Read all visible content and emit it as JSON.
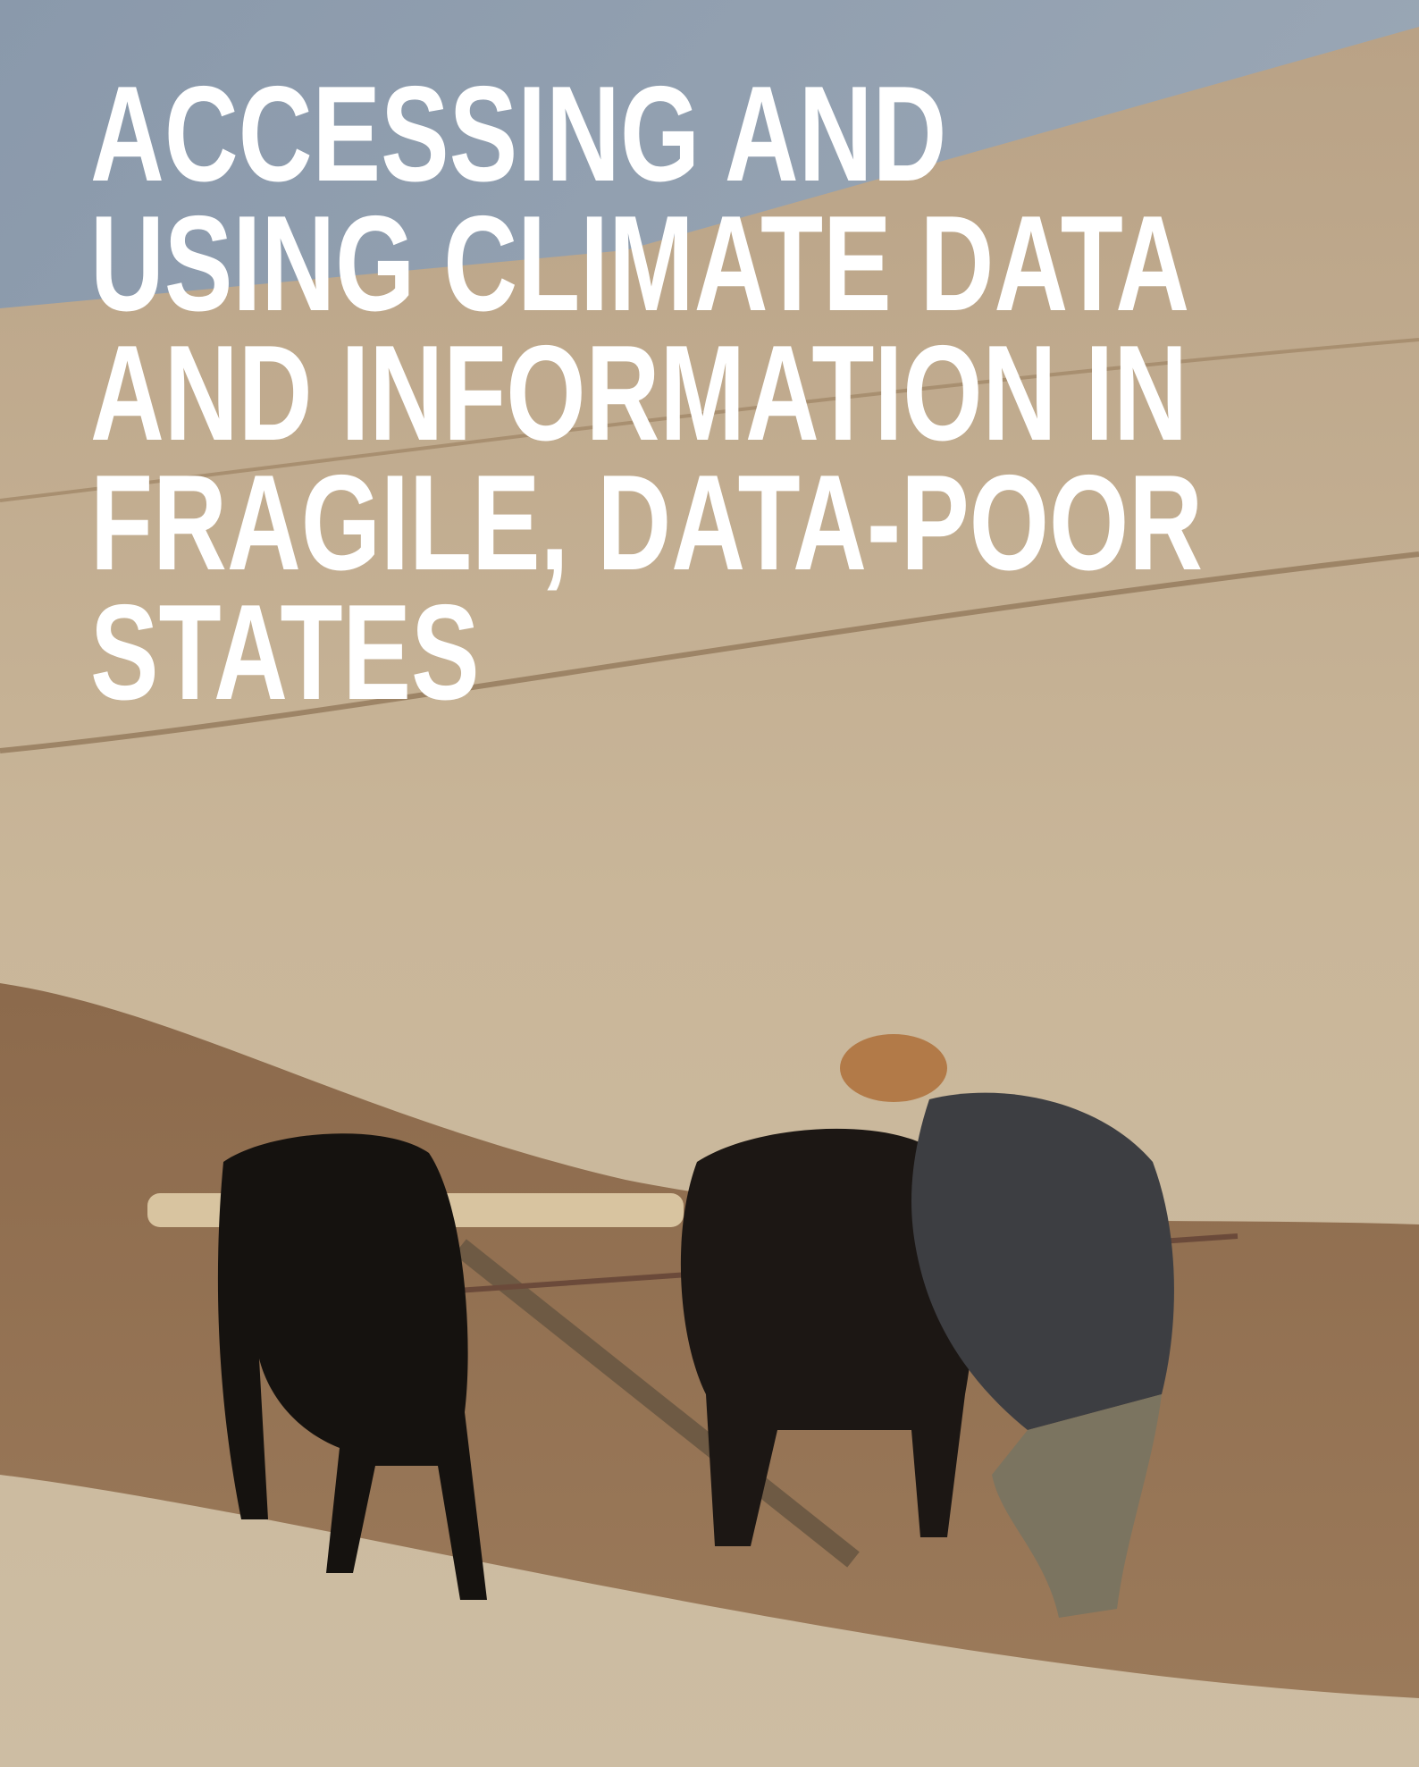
{
  "cover": {
    "title_lines": [
      "ACCESSING AND",
      "USING CLIMATE DATA",
      "AND INFORMATION IN",
      "FRAGILE, DATA-POOR",
      "STATES"
    ]
  }
}
